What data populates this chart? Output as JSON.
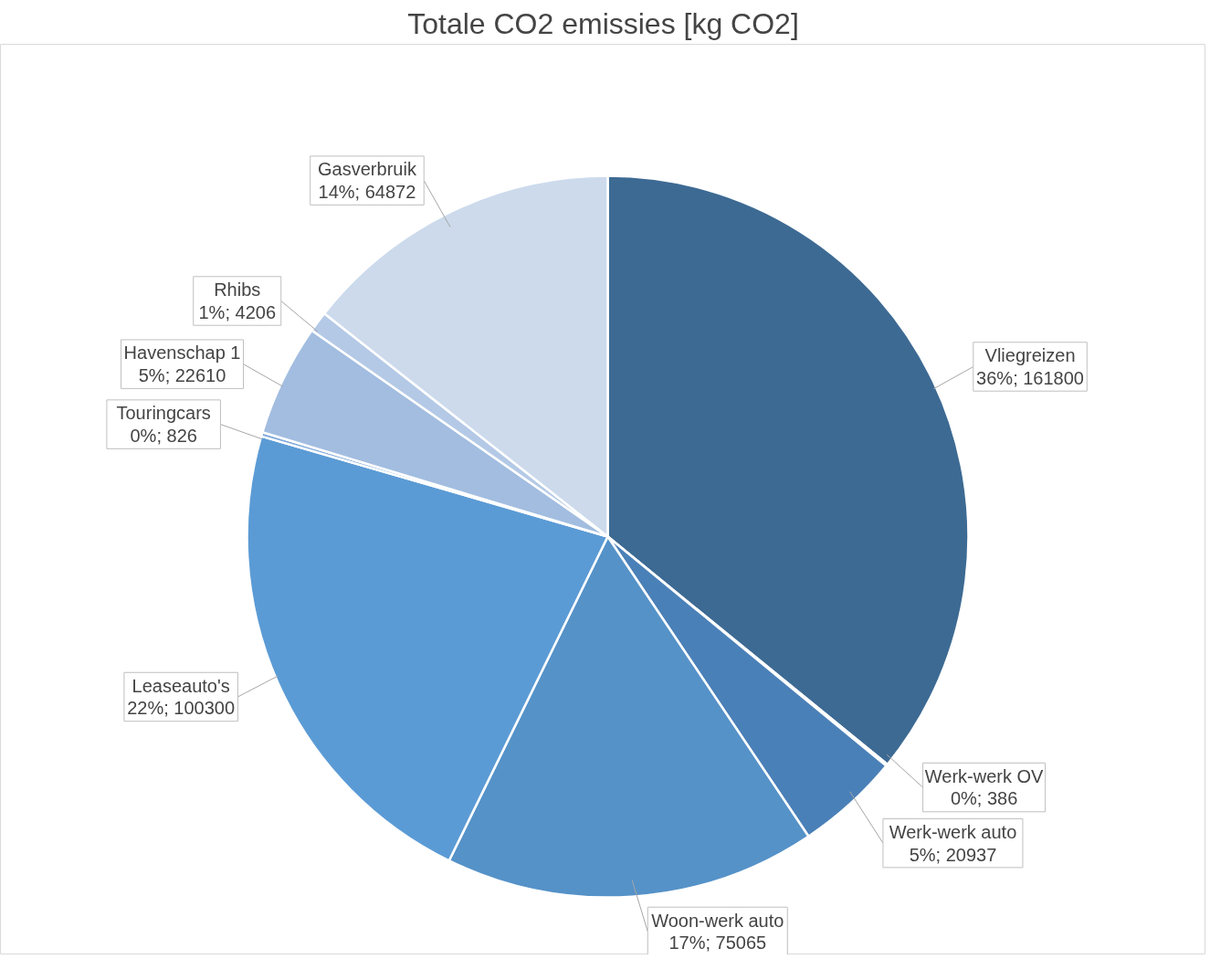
{
  "chart_data": {
    "type": "pie",
    "title": "Totale CO2 emissies [kg CO2]",
    "categories": [
      "Vliegreizen",
      "Werk-werk OV",
      "Werk-werk auto",
      "Woon-werk auto",
      "Leaseauto's",
      "Touringcars",
      "Havenschap 1",
      "Rhibs",
      "Gasverbruik"
    ],
    "values": [
      161800,
      386,
      20937,
      75065,
      100300,
      826,
      22610,
      4206,
      64872
    ],
    "colors": [
      "#3d6a93",
      "#4475a6",
      "#4a80b8",
      "#5592c8",
      "#5b9bd5",
      "#7ea8da",
      "#a2bde0",
      "#b4c9e6",
      "#ccdaec"
    ],
    "value_labels": [
      "36%; 161800",
      "0%; 386",
      "5%; 20937",
      "17%; 75065",
      "22%; 100300",
      "0%; 826",
      "5%; 22610",
      "1%; 4206",
      "14%; 64872"
    ]
  }
}
